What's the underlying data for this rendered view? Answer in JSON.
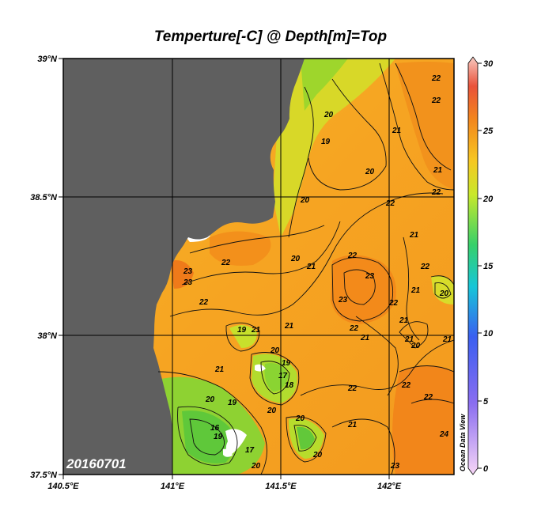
{
  "title": "Temperture[-C] @ Depth[m]=Top",
  "date_label": "20160701",
  "watermark": "Ocean Data View",
  "axes": {
    "lat_ticks": [
      "39°N",
      "38.5°N",
      "38°N",
      "37.5°N"
    ],
    "lon_ticks": [
      "140.5°E",
      "141°E",
      "141.5°E",
      "142°E"
    ]
  },
  "colorbar": {
    "min": 0,
    "max": 30,
    "ticks": [
      "30",
      "25",
      "20",
      "15",
      "10",
      "5",
      "0"
    ]
  },
  "colors": {
    "land": "#5f5f5f",
    "warm": "#f48a14",
    "mid": "#f5b224",
    "cool": "#9fd62a",
    "green": "#6ccc3a"
  },
  "contour_labels": [
    "23",
    "22",
    "23",
    "22",
    "21",
    "21",
    "20",
    "19",
    "20",
    "19",
    "19",
    "17",
    "18",
    "20",
    "21",
    "21",
    "20",
    "19",
    "16",
    "17",
    "20",
    "20",
    "20",
    "22",
    "21",
    "22",
    "23",
    "23",
    "22",
    "21",
    "22",
    "21",
    "22",
    "21",
    "22",
    "20",
    "21",
    "22",
    "22",
    "22",
    "24",
    "23",
    "22",
    "21",
    "20",
    "21",
    "19",
    "20",
    "20",
    "22",
    "21",
    "20",
    "21"
  ]
}
